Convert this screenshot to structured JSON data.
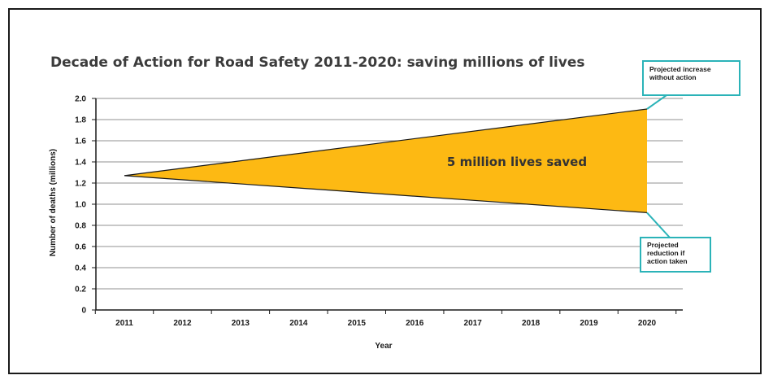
{
  "chart_data": {
    "type": "area",
    "title": "Decade of Action for Road Safety 2011-2020: saving millions of lives",
    "xlabel": "Year",
    "ylabel": "Number of deaths (millions)",
    "categories": [
      "2011",
      "2012",
      "2013",
      "2014",
      "2015",
      "2016",
      "2017",
      "2018",
      "2019",
      "2020"
    ],
    "x": [
      2011,
      2020
    ],
    "ylim": [
      0,
      2.0
    ],
    "yticks": [
      "0",
      "0.2",
      "0.4",
      "0.6",
      "0.8",
      "1.0",
      "1.2",
      "1.4",
      "1.6",
      "1.8",
      "2.0"
    ],
    "grid": true,
    "series": [
      {
        "values": [
          1.27,
          1.9
        ]
      },
      {
        "values": [
          1.27,
          0.92
        ]
      }
    ],
    "fill_color": "#FDB913",
    "area_label": "5 million lives saved",
    "annotations": [
      {
        "text_lines": [
          "Projected increase",
          "without action"
        ],
        "callout_color": "#2BB3B8"
      },
      {
        "text_lines": [
          "Projected",
          "reduction if",
          "action taken"
        ],
        "callout_color": "#2BB3B8"
      }
    ]
  }
}
